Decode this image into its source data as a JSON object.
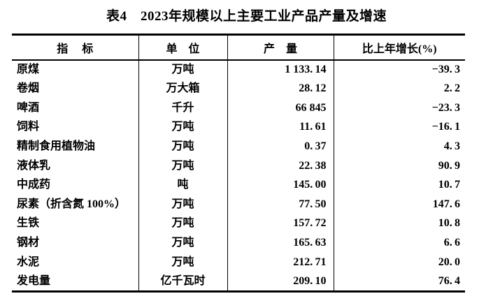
{
  "title": "表4　2023年规模以上主要工业产品产量及增速",
  "colors": {
    "background": "#ffffff",
    "text": "#000000",
    "border": "#000000"
  },
  "table": {
    "headers": [
      "指　 标",
      "单　位",
      "产　量",
      "比上年增长(%)"
    ],
    "rows": [
      {
        "indicator": "原煤",
        "unit": "万吨",
        "output": "1 133.14",
        "growth": "−39.3"
      },
      {
        "indicator": "卷烟",
        "unit": "万大箱",
        "output": "28.12",
        "growth": "2.2"
      },
      {
        "indicator": "啤酒",
        "unit": "千升",
        "output": "66 845",
        "growth": "−23.3"
      },
      {
        "indicator": "饲料",
        "unit": "万吨",
        "output": "11.61",
        "growth": "−16.1"
      },
      {
        "indicator": "精制食用植物油",
        "unit": "万吨",
        "output": "0.37",
        "growth": "4.3"
      },
      {
        "indicator": "液体乳",
        "unit": "万吨",
        "output": "22.38",
        "growth": "90.9"
      },
      {
        "indicator": "中成药",
        "unit": "吨",
        "output": "145.00",
        "growth": "10.7"
      },
      {
        "indicator": "尿素（折含氮 100%）",
        "unit": "万吨",
        "output": "77.50",
        "growth": "147.6"
      },
      {
        "indicator": "生铁",
        "unit": "万吨",
        "output": "157.72",
        "growth": "10.8"
      },
      {
        "indicator": "钢材",
        "unit": "万吨",
        "output": "165.63",
        "growth": "6.6"
      },
      {
        "indicator": "水泥",
        "unit": "万吨",
        "output": "212.71",
        "growth": "20.0"
      },
      {
        "indicator": "发电量",
        "unit": "亿千瓦时",
        "output": "209.10",
        "growth": "76.4"
      }
    ]
  }
}
